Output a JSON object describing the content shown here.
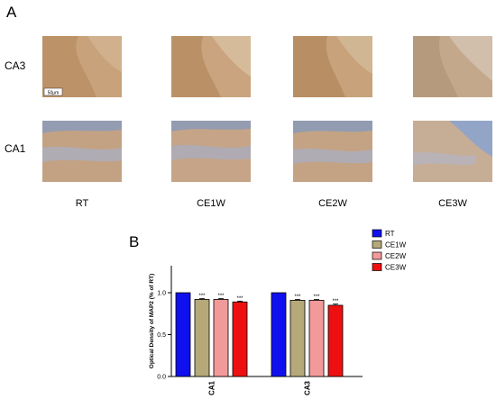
{
  "panel_a": {
    "letter": "A",
    "rows": [
      "CA3",
      "CA1"
    ],
    "columns": [
      "RT",
      "CE1W",
      "CE2W",
      "CE3W"
    ],
    "scale_bar_label": "50μm"
  },
  "panel_b": {
    "letter": "B"
  },
  "chart_data": {
    "type": "bar",
    "ylabel": "Optical Density of MAP2 (% of RT)",
    "xlabel": "",
    "ylim": [
      0,
      1
    ],
    "yticks": [
      "0.0",
      "0.5",
      "1.0"
    ],
    "categories": [
      "CA1",
      "CA3"
    ],
    "legend_position": "top-right",
    "series": [
      {
        "name": "RT",
        "color": "#1010ee",
        "values": [
          1.0,
          1.0
        ],
        "errors": [
          0,
          0
        ],
        "sig": [
          "",
          ""
        ]
      },
      {
        "name": "CE1W",
        "color": "#b5a97a",
        "values": [
          0.92,
          0.91
        ],
        "errors": [
          0.01,
          0.01
        ],
        "sig": [
          "***",
          "***"
        ]
      },
      {
        "name": "CE2W",
        "color": "#f29a9a",
        "values": [
          0.92,
          0.91
        ],
        "errors": [
          0.01,
          0.01
        ],
        "sig": [
          "***",
          "***"
        ]
      },
      {
        "name": "CE3W",
        "color": "#ee1010",
        "values": [
          0.89,
          0.85
        ],
        "errors": [
          0.01,
          0.015
        ],
        "sig": [
          "***",
          "***"
        ]
      }
    ]
  }
}
